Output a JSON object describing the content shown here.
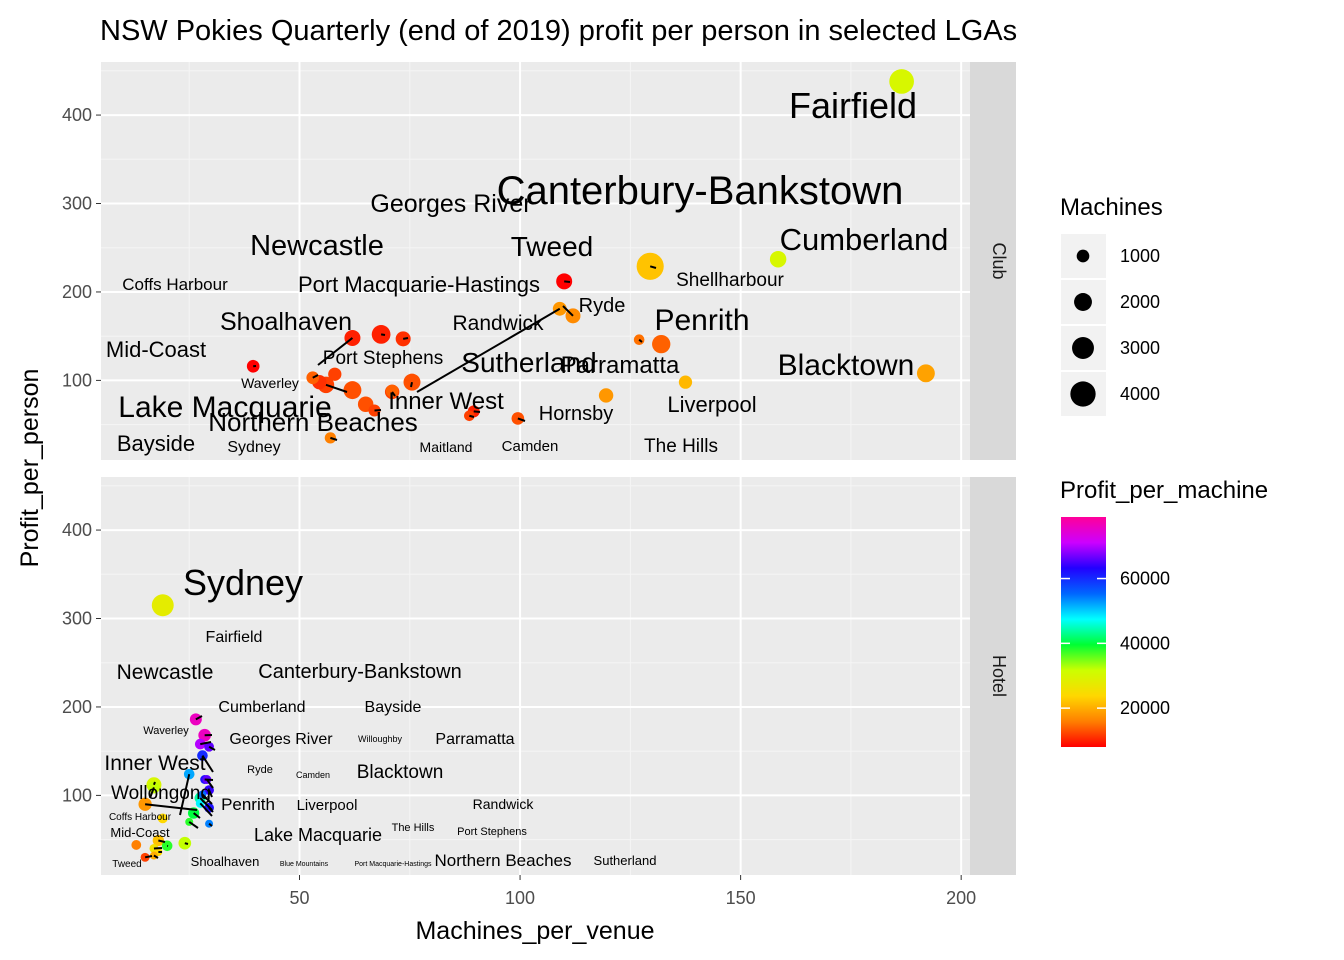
{
  "chart_data": {
    "type": "scatter",
    "title": "NSW Pokies Quarterly (end of 2019) profit per person in selected LGAs",
    "xlabel": "Machines_per_venue",
    "ylabel": "Profit_per_person",
    "xlim": [
      5,
      202
    ],
    "ylim": [
      10,
      460
    ],
    "x_ticks": [
      50,
      100,
      150,
      200
    ],
    "y_ticks": [
      100,
      200,
      300,
      400
    ],
    "grid": true,
    "facets": [
      {
        "name": "Club",
        "points": [
          {
            "label": "Fairfield",
            "x": 186.5,
            "y": 438,
            "machines": 3800,
            "profit_per_machine": 30000,
            "font": 36
          },
          {
            "label": "Canterbury-Bankstown",
            "x": 129.5,
            "y": 229,
            "machines": 4600,
            "profit_per_machine": 22000,
            "font": 40
          },
          {
            "label": "Cumberland",
            "x": 158.5,
            "y": 237,
            "machines": 1700,
            "profit_per_machine": 30000,
            "font": 31
          },
          {
            "label": "Blacktown",
            "x": 192,
            "y": 108,
            "machines": 2000,
            "profit_per_machine": 19000,
            "font": 30
          },
          {
            "label": "Shellharbour",
            "x": 127,
            "y": 146,
            "machines": 700,
            "profit_per_machine": 15000,
            "font": 19
          },
          {
            "label": "Penrith",
            "x": 132,
            "y": 141,
            "machines": 2100,
            "profit_per_machine": 14000,
            "font": 30
          },
          {
            "label": "Liverpool",
            "x": 137.5,
            "y": 98,
            "machines": 1100,
            "profit_per_machine": 21000,
            "font": 22
          },
          {
            "label": "Parramatta",
            "x": 119.5,
            "y": 83,
            "machines": 1300,
            "profit_per_machine": 18000,
            "font": 24
          },
          {
            "label": "Tweed",
            "x": 110,
            "y": 212,
            "machines": 1600,
            "profit_per_machine": 8000,
            "font": 28
          },
          {
            "label": "Ryde",
            "x": 109,
            "y": 181,
            "machines": 1200,
            "profit_per_machine": 18000,
            "font": 20
          },
          {
            "label": "Georges River",
            "x": 112,
            "y": 173,
            "machines": 1400,
            "profit_per_machine": 17000,
            "font": 25
          },
          {
            "label": "Newcastle",
            "x": 68.5,
            "y": 152,
            "machines": 2200,
            "profit_per_machine": 10000,
            "font": 29
          },
          {
            "label": "Port Macquarie-Hastings",
            "x": 73.5,
            "y": 147,
            "machines": 1400,
            "profit_per_machine": 11000,
            "font": 22
          },
          {
            "label": "Shoalhaven",
            "x": 62,
            "y": 148,
            "machines": 1600,
            "profit_per_machine": 10000,
            "font": 25
          },
          {
            "label": "Randwick",
            "x": 71,
            "y": 87,
            "machines": 1300,
            "profit_per_machine": 12000,
            "font": 21
          },
          {
            "label": "Sutherland",
            "x": 75.5,
            "y": 98,
            "machines": 1800,
            "profit_per_machine": 13000,
            "font": 28
          },
          {
            "label": "Coffs Harbour",
            "x": 53,
            "y": 103,
            "machines": 1000,
            "profit_per_machine": 14000,
            "font": 17
          },
          {
            "label": "Port Stephens",
            "x": 58,
            "y": 107,
            "machines": 1100,
            "profit_per_machine": 12000,
            "font": 19
          },
          {
            "label": "Mid-Coast",
            "x": 39.5,
            "y": 116,
            "machines": 1000,
            "profit_per_machine": 8000,
            "font": 22
          },
          {
            "label": "Waverley",
            "x": 54.5,
            "y": 98,
            "machines": 1300,
            "profit_per_machine": 11000,
            "font": 14
          },
          {
            "label": "Lake Macquarie",
            "x": 62,
            "y": 89,
            "machines": 2000,
            "profit_per_machine": 13000,
            "font": 30
          },
          {
            "label": "Bayside",
            "x": 56,
            "y": 95,
            "machines": 1700,
            "profit_per_machine": 12000,
            "font": 22
          },
          {
            "label": "Northern Beaches",
            "x": 65,
            "y": 73,
            "machines": 1500,
            "profit_per_machine": 13000,
            "font": 26
          },
          {
            "label": "Inner West",
            "x": 71,
            "y": 88,
            "machines": 1000,
            "profit_per_machine": 14000,
            "font": 24
          },
          {
            "label": "Maitland",
            "x": 67,
            "y": 66,
            "machines": 900,
            "profit_per_machine": 12000,
            "font": 14
          },
          {
            "label": "Sydney",
            "x": 57,
            "y": 35,
            "machines": 800,
            "profit_per_machine": 16000,
            "font": 16
          },
          {
            "label": "Hornsby",
            "x": 89.5,
            "y": 65,
            "machines": 900,
            "profit_per_machine": 10000,
            "font": 20
          },
          {
            "label": "Camden",
            "x": 88.5,
            "y": 60,
            "machines": 700,
            "profit_per_machine": 12000,
            "font": 15
          },
          {
            "label": "The Hills",
            "x": 99.5,
            "y": 57,
            "machines": 1000,
            "profit_per_machine": 13000,
            "font": 19
          }
        ]
      },
      {
        "name": "Hotel",
        "points": [
          {
            "label": "Sydney",
            "x": 19,
            "y": 315,
            "machines": 3000,
            "profit_per_machine": 28000,
            "font": 36
          },
          {
            "label": "Fairfield",
            "x": 26.5,
            "y": 186,
            "machines": 900,
            "profit_per_machine": 76000,
            "font": 16
          },
          {
            "label": "Canterbury-Bankstown",
            "x": 28.5,
            "y": 168,
            "machines": 1000,
            "profit_per_machine": 76000,
            "font": 20
          },
          {
            "label": "Cumberland",
            "x": 27.5,
            "y": 158,
            "machines": 700,
            "profit_per_machine": 70000,
            "font": 16
          },
          {
            "label": "Newcastle",
            "x": 17,
            "y": 112,
            "machines": 1400,
            "profit_per_machine": 30000,
            "font": 21
          },
          {
            "label": "Bayside",
            "x": 29.5,
            "y": 155,
            "machines": 600,
            "profit_per_machine": 66000,
            "font": 16
          },
          {
            "label": "Georges River",
            "x": 28,
            "y": 145,
            "machines": 700,
            "profit_per_machine": 60000,
            "font": 16
          },
          {
            "label": "Willoughby",
            "x": 28.5,
            "y": 118,
            "machines": 500,
            "profit_per_machine": 62000,
            "font": 9
          },
          {
            "label": "Parramatta",
            "x": 29,
            "y": 118,
            "machines": 500,
            "profit_per_machine": 66000,
            "font": 16
          },
          {
            "label": "Waverley",
            "x": 25,
            "y": 124,
            "machines": 700,
            "profit_per_machine": 52000,
            "font": 11
          },
          {
            "label": "Ryde",
            "x": 29.5,
            "y": 106,
            "machines": 600,
            "profit_per_machine": 64000,
            "font": 11
          },
          {
            "label": "Camden",
            "x": 28,
            "y": 101,
            "machines": 400,
            "profit_per_machine": 55000,
            "font": 9
          },
          {
            "label": "Blacktown",
            "x": 27.5,
            "y": 97,
            "machines": 800,
            "profit_per_machine": 44000,
            "font": 19
          },
          {
            "label": "Inner West",
            "x": 17,
            "y": 109,
            "machines": 900,
            "profit_per_machine": 32000,
            "font": 21
          },
          {
            "label": "Wollongong",
            "x": 15,
            "y": 90,
            "machines": 1100,
            "profit_per_machine": 18000,
            "font": 19
          },
          {
            "label": "Penrith",
            "x": 29.5,
            "y": 86,
            "machines": 600,
            "profit_per_machine": 62000,
            "font": 17
          },
          {
            "label": "Liverpool",
            "x": 27.5,
            "y": 91,
            "machines": 500,
            "profit_per_machine": 48000,
            "font": 15
          },
          {
            "label": "Randwick",
            "x": 26,
            "y": 80,
            "machines": 800,
            "profit_per_machine": 40000,
            "font": 14
          },
          {
            "label": "Coffs Harbour",
            "x": 19,
            "y": 74,
            "machines": 600,
            "profit_per_machine": 24000,
            "font": 10
          },
          {
            "label": "The Hills",
            "x": 29.5,
            "y": 68,
            "machines": 400,
            "profit_per_machine": 54000,
            "font": 11
          },
          {
            "label": "Port Stephens",
            "x": 25,
            "y": 70,
            "machines": 400,
            "profit_per_machine": 38000,
            "font": 11
          },
          {
            "label": "Mid-Coast",
            "x": 18,
            "y": 49,
            "machines": 800,
            "profit_per_machine": 22000,
            "font": 13
          },
          {
            "label": "Lake Macquarie",
            "x": 24,
            "y": 46,
            "machines": 1000,
            "profit_per_machine": 32000,
            "font": 18
          },
          {
            "label": "Northern Beaches",
            "x": 20,
            "y": 43,
            "machines": 700,
            "profit_per_machine": 38000,
            "font": 17
          },
          {
            "label": "Tweed",
            "x": 13,
            "y": 44,
            "machines": 600,
            "profit_per_machine": 16000,
            "font": 10
          },
          {
            "label": "Shoalhaven",
            "x": 15,
            "y": 30,
            "machines": 500,
            "profit_per_machine": 12000,
            "font": 13
          },
          {
            "label": "Blue Mountains",
            "x": 18,
            "y": 36,
            "machines": 400,
            "profit_per_machine": 24000,
            "font": 7
          },
          {
            "label": "Port Macquarie-Hastings",
            "x": 17,
            "y": 32,
            "machines": 400,
            "profit_per_machine": 20000,
            "font": 7
          },
          {
            "label": "Sutherland",
            "x": 17,
            "y": 40,
            "machines": 500,
            "profit_per_machine": 26000,
            "font": 13
          }
        ]
      }
    ],
    "legend_size": {
      "title": "Machines",
      "labels": [
        "1000",
        "2000",
        "3000",
        "4000"
      ],
      "values": [
        1000,
        2000,
        3000,
        4000
      ]
    },
    "legend_color": {
      "title": "Profit_per_machine",
      "labels": [
        "20000",
        "40000",
        "60000"
      ],
      "values": [
        20000,
        40000,
        60000
      ],
      "range": [
        8000,
        79000
      ],
      "palette": [
        "#ff0000",
        "#ff7f00",
        "#ffd700",
        "#ccff00",
        "#00ff33",
        "#00ffff",
        "#0066ff",
        "#2200ff",
        "#cc00ff",
        "#ff0099"
      ]
    }
  }
}
